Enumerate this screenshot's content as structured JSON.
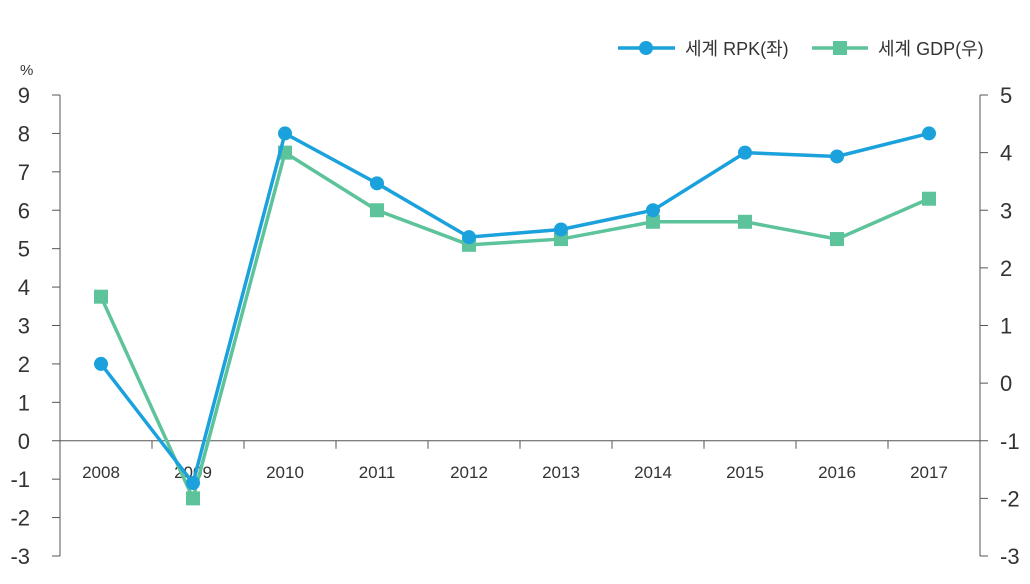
{
  "chart_data": {
    "type": "line",
    "title": "",
    "categories": [
      "2008",
      "2009",
      "2010",
      "2011",
      "2012",
      "2013",
      "2014",
      "2015",
      "2016",
      "2017"
    ],
    "left_axis": {
      "label": "%",
      "ylim": [
        -3,
        9
      ],
      "ticks": [
        9,
        8,
        7,
        6,
        5,
        4,
        3,
        2,
        1,
        0,
        -1,
        -2,
        -3
      ]
    },
    "right_axis": {
      "label": "",
      "ylim": [
        -3,
        5
      ],
      "ticks": [
        5,
        4,
        3,
        2,
        1,
        0,
        -1,
        -2,
        -3
      ]
    },
    "series": [
      {
        "name": "세계 RPK(좌)",
        "axis": "left",
        "color": "#1ba1dc",
        "marker": "circle",
        "values": [
          2.0,
          -1.1,
          8.0,
          6.7,
          5.3,
          5.5,
          6.0,
          7.5,
          7.4,
          8.0
        ]
      },
      {
        "name": "세계 GDP(우)",
        "axis": "right",
        "color": "#5cc39a",
        "marker": "square",
        "values": [
          1.5,
          -2.0,
          4.0,
          3.0,
          2.4,
          2.5,
          2.8,
          2.8,
          2.5,
          3.2
        ]
      }
    ],
    "legend_position": "top-right",
    "grid": false
  }
}
